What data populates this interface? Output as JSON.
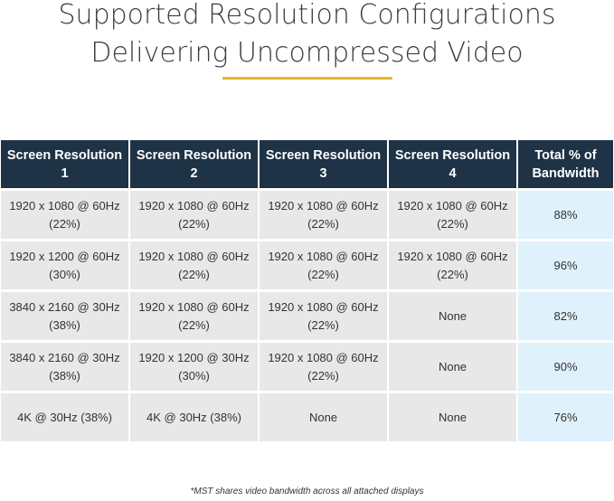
{
  "title": {
    "line1": "Supported Resolution Configurations",
    "line2": "Delivering Uncompressed Video"
  },
  "colors": {
    "header_bg": "#1f3346",
    "cell_bg": "#e8e8e8",
    "total_bg": "#dff1fb",
    "accent_underline": "#e6b92d"
  },
  "table": {
    "headers": [
      "Screen Resolution 1",
      "Screen Resolution 2",
      "Screen Resolution 3",
      "Screen Resolution 4",
      "Total % of Bandwidth"
    ],
    "rows": [
      [
        "1920 x 1080 @ 60Hz (22%)",
        "1920 x 1080 @ 60Hz (22%)",
        "1920 x 1080 @ 60Hz (22%)",
        "1920 x 1080 @ 60Hz (22%)",
        "88%"
      ],
      [
        "1920 x 1200 @ 60Hz (30%)",
        "1920 x 1080 @ 60Hz (22%)",
        "1920 x 1080 @ 60Hz (22%)",
        "1920 x 1080 @ 60Hz (22%)",
        "96%"
      ],
      [
        "3840 x 2160 @ 30Hz (38%)",
        "1920 x 1080 @ 60Hz (22%)",
        "1920 x 1080 @ 60Hz (22%)",
        "None",
        "82%"
      ],
      [
        "3840 x 2160 @ 30Hz (38%)",
        "1920 x 1200 @ 30Hz (30%)",
        "1920 x 1080 @ 60Hz (22%)",
        "None",
        "90%"
      ],
      [
        "4K @ 30Hz (38%)",
        "4K @ 30Hz (38%)",
        "None",
        "None",
        "76%"
      ]
    ]
  },
  "footnote": "*MST shares video bandwidth across all attached displays"
}
